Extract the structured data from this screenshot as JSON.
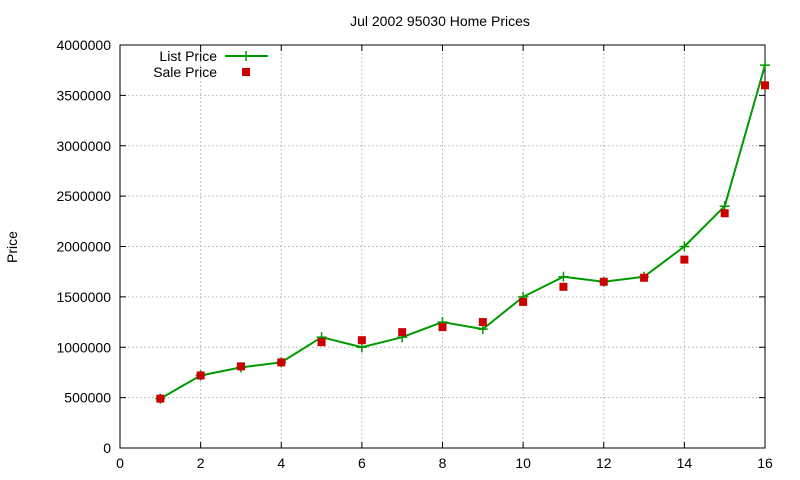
{
  "chart_data": {
    "type": "line",
    "title": "Jul 2002 95030 Home Prices",
    "xlabel": "",
    "ylabel": "Price",
    "xlim": [
      0,
      16
    ],
    "ylim": [
      0,
      4000000
    ],
    "xticks": [
      0,
      2,
      4,
      6,
      8,
      10,
      12,
      14,
      16
    ],
    "yticks": [
      0,
      500000,
      1000000,
      1500000,
      2000000,
      2500000,
      3000000,
      3500000,
      4000000
    ],
    "grid": true,
    "legend_position": "top-left",
    "series": [
      {
        "name": "List Price",
        "style": "line-with-plus-markers",
        "color": "#009900",
        "x": [
          1,
          2,
          3,
          4,
          5,
          6,
          7,
          8,
          9,
          10,
          11,
          12,
          13,
          14,
          15,
          16
        ],
        "y": [
          490000,
          720000,
          800000,
          850000,
          1100000,
          1000000,
          1100000,
          1250000,
          1180000,
          1500000,
          1700000,
          1650000,
          1700000,
          2000000,
          2400000,
          3800000
        ]
      },
      {
        "name": "Sale Price",
        "style": "square-markers",
        "color": "#cc0000",
        "x": [
          1,
          2,
          3,
          4,
          5,
          6,
          7,
          8,
          9,
          10,
          11,
          12,
          13,
          14,
          15,
          16
        ],
        "y": [
          490000,
          720000,
          810000,
          850000,
          1050000,
          1070000,
          1150000,
          1200000,
          1250000,
          1450000,
          1600000,
          1650000,
          1690000,
          1870000,
          2330000,
          3600000
        ]
      }
    ]
  }
}
